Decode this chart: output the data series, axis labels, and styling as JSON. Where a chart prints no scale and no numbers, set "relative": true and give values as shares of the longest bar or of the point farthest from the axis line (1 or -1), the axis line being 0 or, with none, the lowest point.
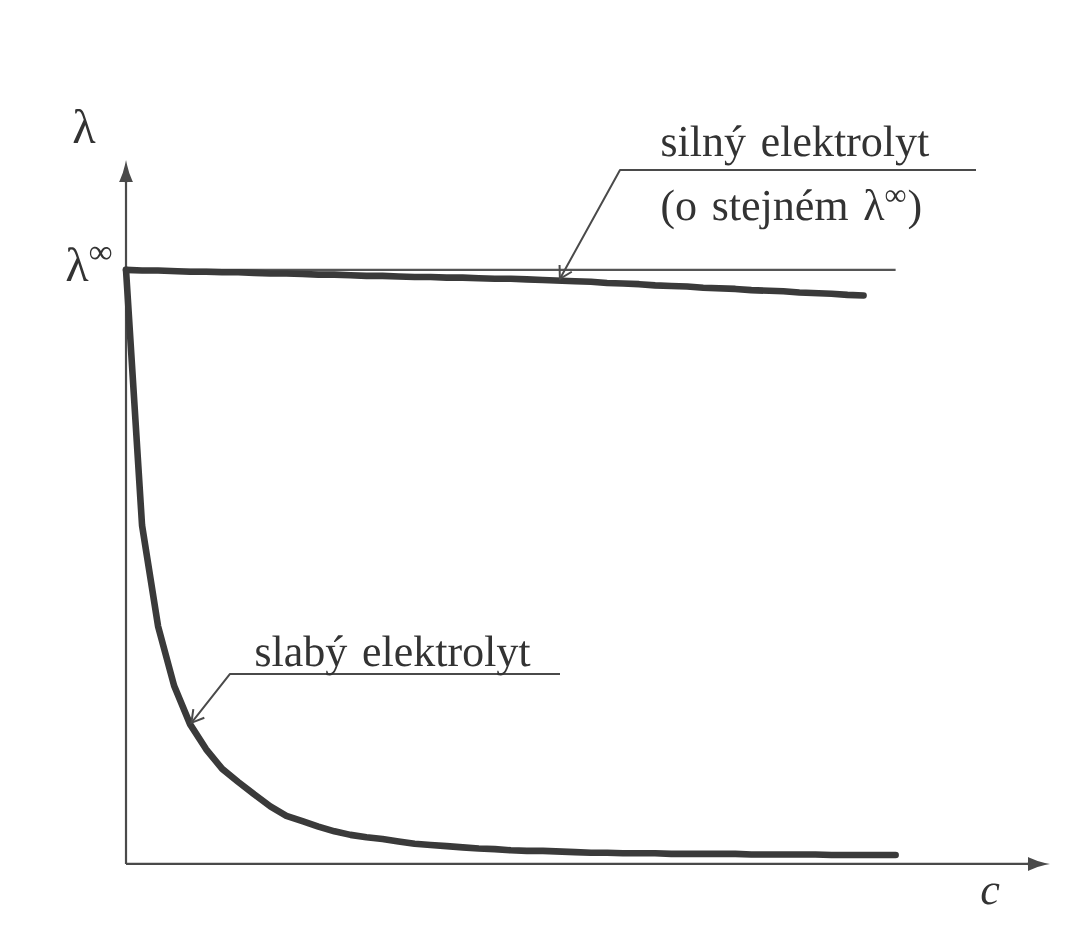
{
  "chart_data": {
    "type": "line",
    "ylabel": "λ",
    "xlabel": "c",
    "relative": true,
    "marker": "none",
    "line_style": "solid",
    "categories": [
      null,
      null,
      null,
      null,
      null,
      null,
      null,
      null,
      null,
      null,
      null,
      null,
      null,
      null,
      null,
      null,
      null,
      null,
      null,
      null,
      null,
      null,
      null,
      null,
      null,
      null,
      null,
      null,
      null,
      null,
      null,
      null,
      null,
      null,
      null,
      null,
      null,
      null,
      null,
      null,
      null,
      null,
      null,
      null,
      null,
      null,
      null,
      null,
      null
    ],
    "series": [
      {
        "name": "silný elektrolyt (o stejném λ$^{∞}$)",
        "color": "#3a3a3a",
        "values": [
          1.0,
          0.999,
          0.999,
          0.998,
          0.997,
          0.997,
          0.996,
          0.996,
          0.995,
          0.994,
          0.994,
          0.993,
          0.992,
          0.992,
          0.991,
          0.99,
          0.99,
          0.989,
          0.988,
          0.988,
          0.987,
          0.987,
          0.986,
          0.985,
          0.985,
          0.984,
          0.983,
          0.982,
          0.981,
          0.98,
          0.978,
          0.977,
          0.976,
          0.974,
          0.973,
          0.972,
          0.97,
          0.969,
          0.968,
          0.966,
          0.965,
          0.964,
          0.962,
          0.961,
          0.96,
          0.958,
          0.957,
          null,
          null
        ]
      },
      {
        "name": "slabý elektrolyt",
        "color": "#3a3a3a",
        "values": [
          1.0,
          0.57,
          0.4,
          0.3,
          0.235,
          0.193,
          0.16,
          0.138,
          0.117,
          0.097,
          0.081,
          0.072,
          0.063,
          0.055,
          0.049,
          0.045,
          0.042,
          0.038,
          0.034,
          0.032,
          0.03,
          0.028,
          0.026,
          0.025,
          0.023,
          0.022,
          0.022,
          0.021,
          0.02,
          0.019,
          0.019,
          0.018,
          0.018,
          0.018,
          0.017,
          0.017,
          0.017,
          0.017,
          0.017,
          0.016,
          0.016,
          0.016,
          0.016,
          0.016,
          0.015,
          0.015,
          0.015,
          0.015,
          0.015
        ]
      }
    ],
    "ref_lines": [
      {
        "axis": "y",
        "value": 1,
        "label": "λ$^{∞}$",
        "color": "#555555"
      }
    ]
  }
}
